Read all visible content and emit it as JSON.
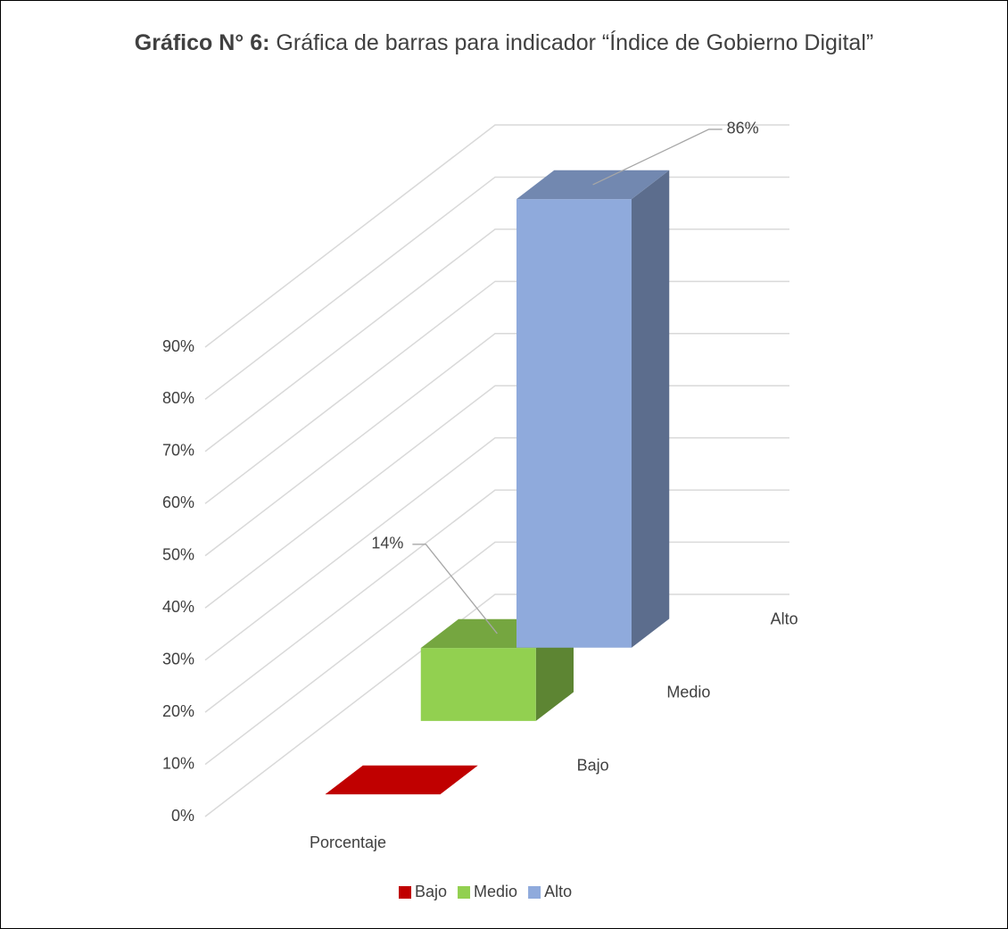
{
  "chart_data": {
    "type": "bar3d",
    "title": [
      "Gráfico N° 6:",
      "Gráfica de barras para indicador “Índice de Gobierno Digital”"
    ],
    "categories": [
      "Porcentaje"
    ],
    "series": [
      {
        "name": "Bajo",
        "color": "#c00000",
        "values": [
          0
        ]
      },
      {
        "name": "Medio",
        "color": "#92d050",
        "values": [
          14
        ],
        "value_labels": [
          "14%"
        ]
      },
      {
        "name": "Alto",
        "color": "#8faadc",
        "values": [
          86
        ],
        "value_labels": [
          "86%"
        ]
      }
    ],
    "ylim": [
      0,
      90
    ],
    "yticks": [
      {
        "value": 0,
        "label": "0%"
      },
      {
        "value": 10,
        "label": "10%"
      },
      {
        "value": 20,
        "label": "20%"
      },
      {
        "value": 30,
        "label": "30%"
      },
      {
        "value": 40,
        "label": "40%"
      },
      {
        "value": 50,
        "label": "50%"
      },
      {
        "value": 60,
        "label": "60%"
      },
      {
        "value": 70,
        "label": "70%"
      },
      {
        "value": 80,
        "label": "80%"
      },
      {
        "value": 90,
        "label": "90%"
      }
    ],
    "grid": true,
    "legend": "bottom"
  }
}
